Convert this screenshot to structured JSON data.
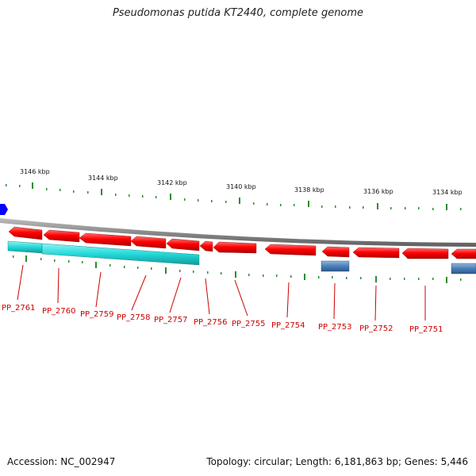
{
  "title": "Pseudomonas putida KT2440, complete genome",
  "footer": {
    "accession": "Accession: NC_002947",
    "summary": "Topology: circular; Length: 6,181,863 bp; Genes: 5,446"
  },
  "kbp_labels": [
    "3146 kbp",
    "3144 kbp",
    "3142 kbp",
    "3140 kbp",
    "3138 kbp",
    "3136 kbp",
    "3134 kbp"
  ],
  "gene_labels": [
    "PP_2761",
    "PP_2760",
    "PP_2759",
    "PP_2758",
    "PP_2757",
    "PP_2756",
    "PP_2755",
    "PP_2754",
    "PP_2753",
    "PP_2752",
    "PP_2751"
  ],
  "colors": {
    "gene_reverse": "#ff0000",
    "cds_teal": "#22d8d8",
    "misc_blue": "#4a7fb8",
    "backbone": "#8a8a8a",
    "ticks": "#2e8b2e",
    "label": "#cc0000",
    "marker": "#0000ff"
  }
}
